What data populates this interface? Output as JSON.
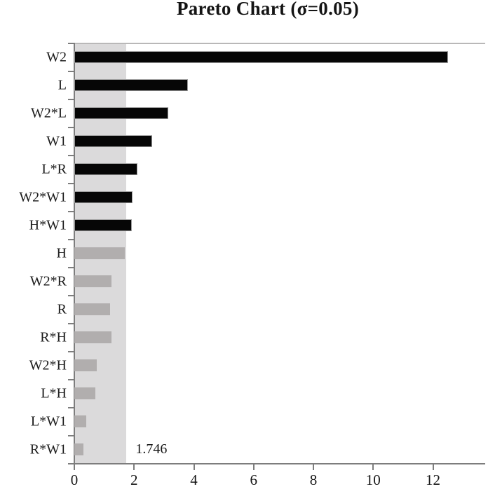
{
  "title": "Pareto Chart (σ=0.05)",
  "chart_data": {
    "type": "bar",
    "orientation": "horizontal",
    "title": "Pareto Chart (σ=0.05)",
    "categories": [
      "W2",
      "L",
      "W2*L",
      "W1",
      "L*R",
      "W2*W1",
      "H*W1",
      "H",
      "W2*R",
      "R",
      "R*H",
      "W2*H",
      "L*H",
      "L*W1",
      "R*W1"
    ],
    "values": [
      12.5,
      3.8,
      3.15,
      2.6,
      2.1,
      1.95,
      1.93,
      1.7,
      1.25,
      1.2,
      1.25,
      0.75,
      0.7,
      0.4,
      0.3
    ],
    "significant": [
      true,
      true,
      true,
      true,
      true,
      true,
      true,
      false,
      false,
      false,
      false,
      false,
      false,
      false,
      false
    ],
    "threshold": 1.746,
    "threshold_label": "1.746",
    "x_ticks": [
      0,
      2,
      4,
      6,
      8,
      10,
      12
    ],
    "xlim": [
      0,
      13.7
    ],
    "ylabel": "",
    "xlabel": "",
    "grid": false,
    "legend": "none",
    "colors": {
      "significant_bar": "#060606",
      "insignificant_bar": "#b1aeae",
      "threshold_band": "#dbdadb",
      "axis_line": "#7d7d7d",
      "top_border": "#b9b8b8",
      "bar_outline": "#9e9e9e"
    }
  }
}
